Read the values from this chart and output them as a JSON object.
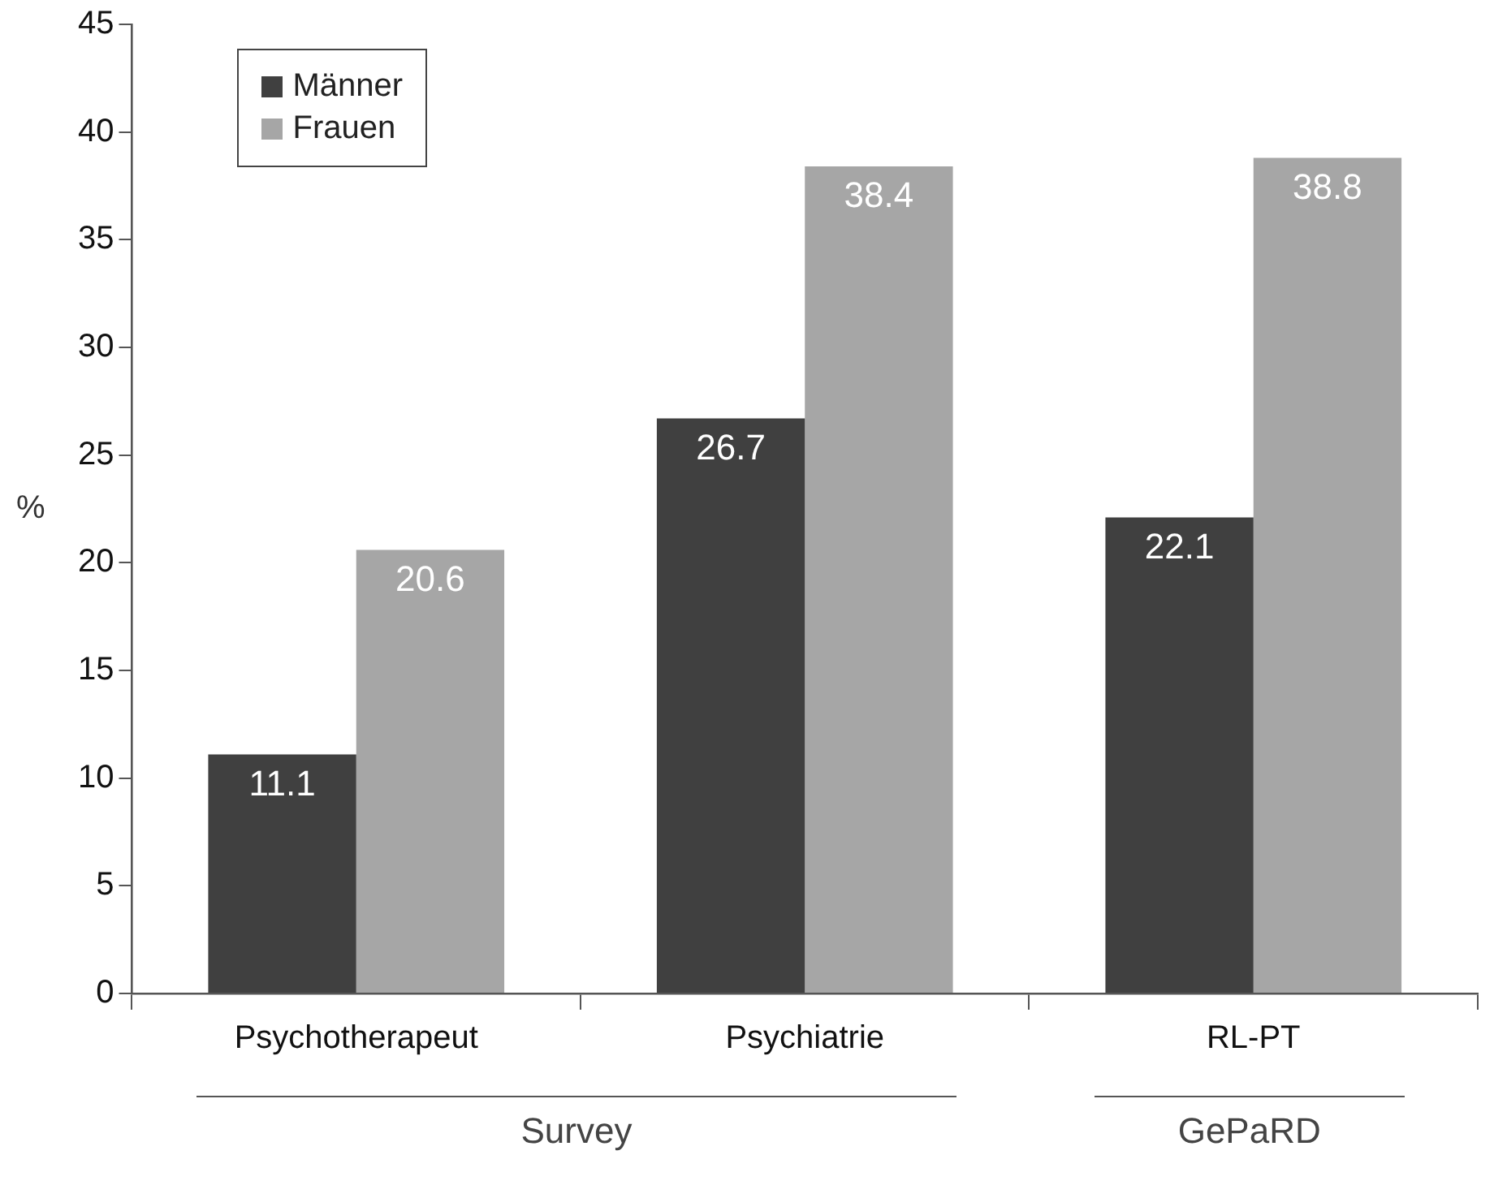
{
  "chart_data": {
    "type": "bar",
    "ylabel": "%",
    "categories": [
      "Psychotherapeut",
      "Psychiatrie",
      "RL-PT"
    ],
    "series": [
      {
        "name": "Männer",
        "color": "#404040",
        "values": [
          11.1,
          26.7,
          22.1
        ]
      },
      {
        "name": "Frauen",
        "color": "#a6a6a6",
        "values": [
          20.6,
          38.4,
          38.8
        ]
      }
    ],
    "ylim": [
      0,
      45
    ],
    "yticks": [
      0,
      5,
      10,
      15,
      20,
      25,
      30,
      35,
      40,
      45
    ],
    "grid": false,
    "legend": "top left",
    "data_labels": true,
    "annotations": [
      "Survey",
      "GePaRD"
    ]
  }
}
